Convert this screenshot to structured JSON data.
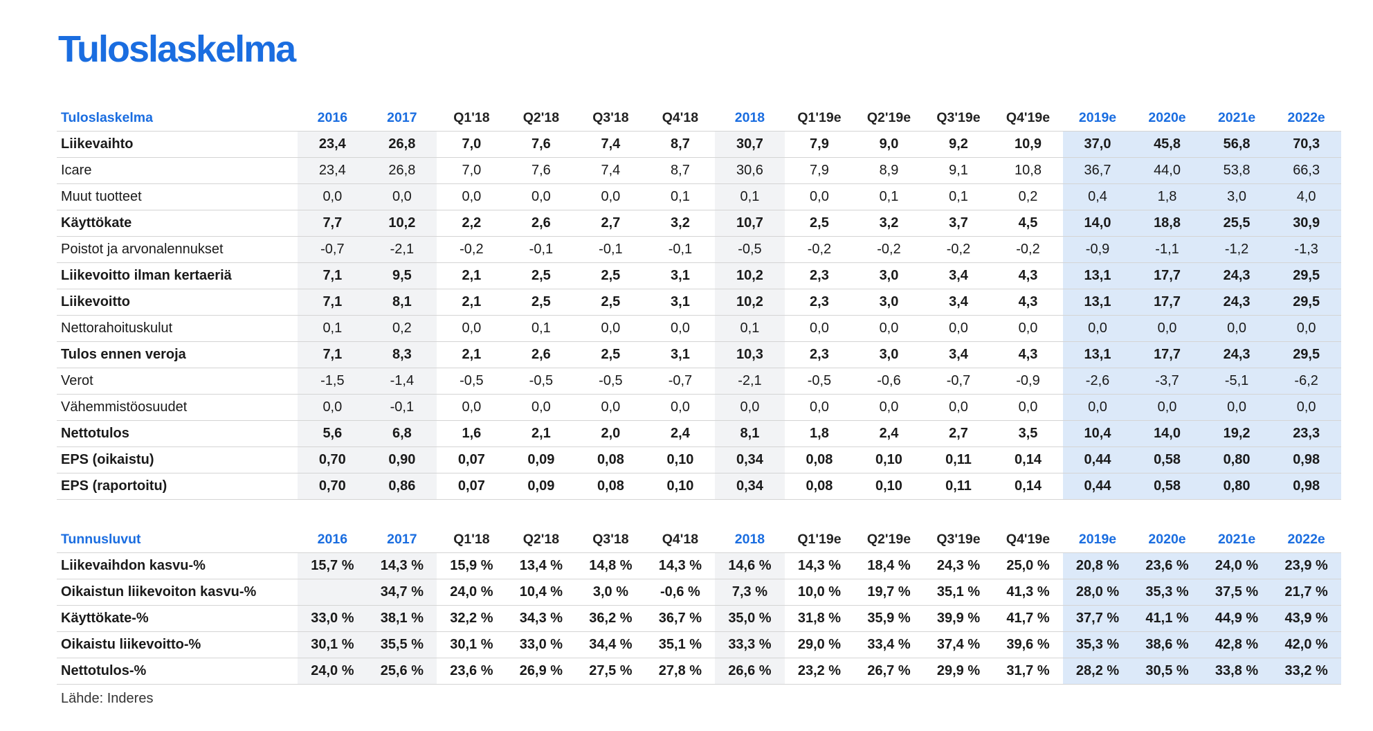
{
  "page_title": "Tuloslaskelma",
  "source": "Lähde: Inderes",
  "columns": [
    "2016",
    "2017",
    "Q1'18",
    "Q2'18",
    "Q3'18",
    "Q4'18",
    "2018",
    "Q1'19e",
    "Q2'19e",
    "Q3'19e",
    "Q4'19e",
    "2019e",
    "2020e",
    "2021e",
    "2022e"
  ],
  "column_kinds": [
    "y",
    "y",
    "q",
    "q",
    "q",
    "q",
    "y",
    "q",
    "q",
    "q",
    "q",
    "e",
    "e",
    "e",
    "e"
  ],
  "income_statement": {
    "header": "Tuloslaskelma",
    "rows": [
      {
        "label": "Liikevaihto",
        "bold": true,
        "values": [
          "23,4",
          "26,8",
          "7,0",
          "7,6",
          "7,4",
          "8,7",
          "30,7",
          "7,9",
          "9,0",
          "9,2",
          "10,9",
          "37,0",
          "45,8",
          "56,8",
          "70,3"
        ]
      },
      {
        "label": "Icare",
        "bold": false,
        "values": [
          "23,4",
          "26,8",
          "7,0",
          "7,6",
          "7,4",
          "8,7",
          "30,6",
          "7,9",
          "8,9",
          "9,1",
          "10,8",
          "36,7",
          "44,0",
          "53,8",
          "66,3"
        ]
      },
      {
        "label": "Muut tuotteet",
        "bold": false,
        "values": [
          "0,0",
          "0,0",
          "0,0",
          "0,0",
          "0,0",
          "0,1",
          "0,1",
          "0,0",
          "0,1",
          "0,1",
          "0,2",
          "0,4",
          "1,8",
          "3,0",
          "4,0"
        ]
      },
      {
        "label": "Käyttökate",
        "bold": true,
        "values": [
          "7,7",
          "10,2",
          "2,2",
          "2,6",
          "2,7",
          "3,2",
          "10,7",
          "2,5",
          "3,2",
          "3,7",
          "4,5",
          "14,0",
          "18,8",
          "25,5",
          "30,9"
        ]
      },
      {
        "label": "Poistot ja arvonalennukset",
        "bold": false,
        "values": [
          "-0,7",
          "-2,1",
          "-0,2",
          "-0,1",
          "-0,1",
          "-0,1",
          "-0,5",
          "-0,2",
          "-0,2",
          "-0,2",
          "-0,2",
          "-0,9",
          "-1,1",
          "-1,2",
          "-1,3"
        ]
      },
      {
        "label": "Liikevoitto ilman kertaeriä",
        "bold": true,
        "values": [
          "7,1",
          "9,5",
          "2,1",
          "2,5",
          "2,5",
          "3,1",
          "10,2",
          "2,3",
          "3,0",
          "3,4",
          "4,3",
          "13,1",
          "17,7",
          "24,3",
          "29,5"
        ]
      },
      {
        "label": "Liikevoitto",
        "bold": true,
        "values": [
          "7,1",
          "8,1",
          "2,1",
          "2,5",
          "2,5",
          "3,1",
          "10,2",
          "2,3",
          "3,0",
          "3,4",
          "4,3",
          "13,1",
          "17,7",
          "24,3",
          "29,5"
        ]
      },
      {
        "label": "Nettorahoituskulut",
        "bold": false,
        "values": [
          "0,1",
          "0,2",
          "0,0",
          "0,1",
          "0,0",
          "0,0",
          "0,1",
          "0,0",
          "0,0",
          "0,0",
          "0,0",
          "0,0",
          "0,0",
          "0,0",
          "0,0"
        ]
      },
      {
        "label": "Tulos ennen veroja",
        "bold": true,
        "values": [
          "7,1",
          "8,3",
          "2,1",
          "2,6",
          "2,5",
          "3,1",
          "10,3",
          "2,3",
          "3,0",
          "3,4",
          "4,3",
          "13,1",
          "17,7",
          "24,3",
          "29,5"
        ]
      },
      {
        "label": "Verot",
        "bold": false,
        "values": [
          "-1,5",
          "-1,4",
          "-0,5",
          "-0,5",
          "-0,5",
          "-0,7",
          "-2,1",
          "-0,5",
          "-0,6",
          "-0,7",
          "-0,9",
          "-2,6",
          "-3,7",
          "-5,1",
          "-6,2"
        ]
      },
      {
        "label": "Vähemmistöosuudet",
        "bold": false,
        "values": [
          "0,0",
          "-0,1",
          "0,0",
          "0,0",
          "0,0",
          "0,0",
          "0,0",
          "0,0",
          "0,0",
          "0,0",
          "0,0",
          "0,0",
          "0,0",
          "0,0",
          "0,0"
        ]
      },
      {
        "label": "Nettotulos",
        "bold": true,
        "values": [
          "5,6",
          "6,8",
          "1,6",
          "2,1",
          "2,0",
          "2,4",
          "8,1",
          "1,8",
          "2,4",
          "2,7",
          "3,5",
          "10,4",
          "14,0",
          "19,2",
          "23,3"
        ]
      },
      {
        "label": "EPS (oikaistu)",
        "bold": true,
        "values": [
          "0,70",
          "0,90",
          "0,07",
          "0,09",
          "0,08",
          "0,10",
          "0,34",
          "0,08",
          "0,10",
          "0,11",
          "0,14",
          "0,44",
          "0,58",
          "0,80",
          "0,98"
        ]
      },
      {
        "label": "EPS (raportoitu)",
        "bold": true,
        "values": [
          "0,70",
          "0,86",
          "0,07",
          "0,09",
          "0,08",
          "0,10",
          "0,34",
          "0,08",
          "0,10",
          "0,11",
          "0,14",
          "0,44",
          "0,58",
          "0,80",
          "0,98"
        ]
      }
    ]
  },
  "key_figures": {
    "header": "Tunnusluvut",
    "rows": [
      {
        "label": "Liikevaihdon kasvu-%",
        "bold": true,
        "values": [
          "15,7 %",
          "14,3 %",
          "15,9 %",
          "13,4 %",
          "14,8 %",
          "14,3 %",
          "14,6 %",
          "14,3 %",
          "18,4 %",
          "24,3 %",
          "25,0 %",
          "20,8 %",
          "23,6 %",
          "24,0 %",
          "23,9 %"
        ]
      },
      {
        "label": "Oikaistun liikevoiton kasvu-%",
        "bold": true,
        "values": [
          "",
          "34,7 %",
          "24,0 %",
          "10,4 %",
          "3,0 %",
          "-0,6 %",
          "7,3 %",
          "10,0 %",
          "19,7 %",
          "35,1 %",
          "41,3 %",
          "28,0 %",
          "35,3 %",
          "37,5 %",
          "21,7 %"
        ]
      },
      {
        "label": "Käyttökate-%",
        "bold": true,
        "values": [
          "33,0 %",
          "38,1 %",
          "32,2 %",
          "34,3 %",
          "36,2 %",
          "36,7 %",
          "35,0 %",
          "31,8 %",
          "35,9 %",
          "39,9 %",
          "41,7 %",
          "37,7 %",
          "41,1 %",
          "44,9 %",
          "43,9 %"
        ]
      },
      {
        "label": "Oikaistu liikevoitto-%",
        "bold": true,
        "values": [
          "30,1 %",
          "35,5 %",
          "30,1 %",
          "33,0 %",
          "34,4 %",
          "35,1 %",
          "33,3 %",
          "29,0 %",
          "33,4 %",
          "37,4 %",
          "39,6 %",
          "35,3 %",
          "38,6 %",
          "42,8 %",
          "42,0 %"
        ]
      },
      {
        "label": "Nettotulos-%",
        "bold": true,
        "values": [
          "24,0 %",
          "25,6 %",
          "23,6 %",
          "26,9 %",
          "27,5 %",
          "27,8 %",
          "26,6 %",
          "23,2 %",
          "26,7 %",
          "29,9 %",
          "31,7 %",
          "28,2 %",
          "30,5 %",
          "33,8 %",
          "33,2 %"
        ]
      }
    ]
  }
}
